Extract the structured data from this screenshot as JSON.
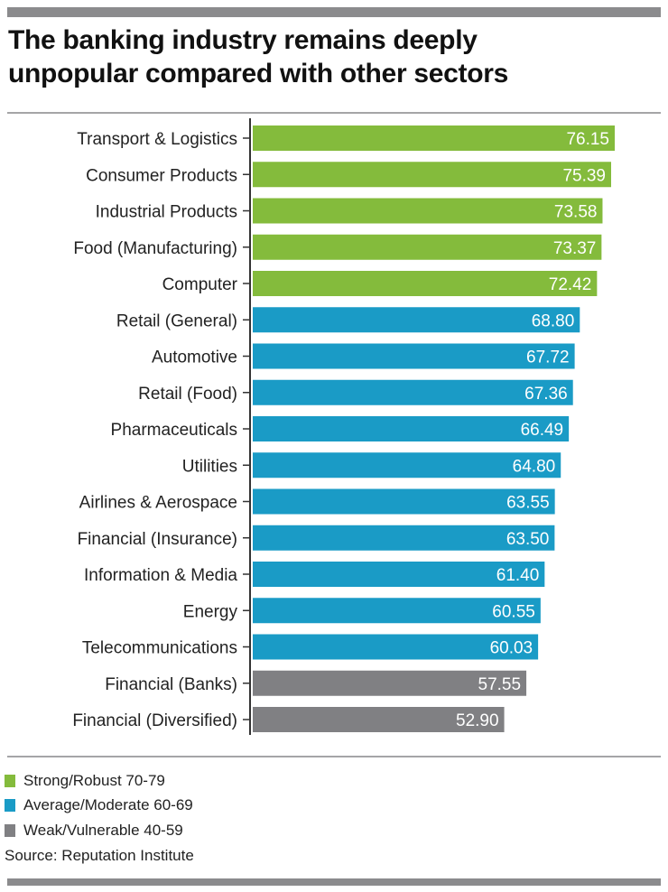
{
  "chart_data": {
    "type": "bar",
    "orientation": "horizontal",
    "title": "The banking industry remains deeply unpopular compared with other sectors",
    "categories": [
      "Transport & Logistics",
      "Consumer Products",
      "Industrial Products",
      "Food (Manufacturing)",
      "Computer",
      "Retail (General)",
      "Automotive",
      "Retail (Food)",
      "Pharmaceuticals",
      "Utilities",
      "Airlines & Aerospace",
      "Financial (Insurance)",
      "Information & Media",
      "Energy",
      "Telecommunications",
      "Financial (Banks)",
      "Financial (Diversified)"
    ],
    "values": [
      76.15,
      75.39,
      73.58,
      73.37,
      72.42,
      68.8,
      67.72,
      67.36,
      66.49,
      64.8,
      63.55,
      63.5,
      61.4,
      60.55,
      60.03,
      57.55,
      52.9
    ],
    "labels": [
      "76.15",
      "75.39",
      "73.58",
      "73.37",
      "72.42",
      "68.80",
      "67.72",
      "67.36",
      "66.49",
      "64.80",
      "63.55",
      "63.50",
      "61.40",
      "60.55",
      "60.03",
      "57.55",
      "52.90"
    ],
    "groups": [
      "strong",
      "strong",
      "strong",
      "strong",
      "strong",
      "average",
      "average",
      "average",
      "average",
      "average",
      "average",
      "average",
      "average",
      "average",
      "average",
      "weak",
      "weak"
    ],
    "xlim": [
      0,
      80
    ],
    "grid": false,
    "legend_position": "bottom-left",
    "legend": [
      {
        "key": "strong",
        "label": "Strong/Robust 70-79",
        "color": "#84bb3c"
      },
      {
        "key": "average",
        "label": "Average/Moderate 60-69",
        "color": "#1a9bc6"
      },
      {
        "key": "weak",
        "label": "Weak/Vulnerable 40-59",
        "color": "#808083"
      }
    ],
    "source": "Source: Reputation Institute"
  },
  "title_lines": [
    "The banking industry remains deeply",
    "unpopular compared with other sectors"
  ]
}
